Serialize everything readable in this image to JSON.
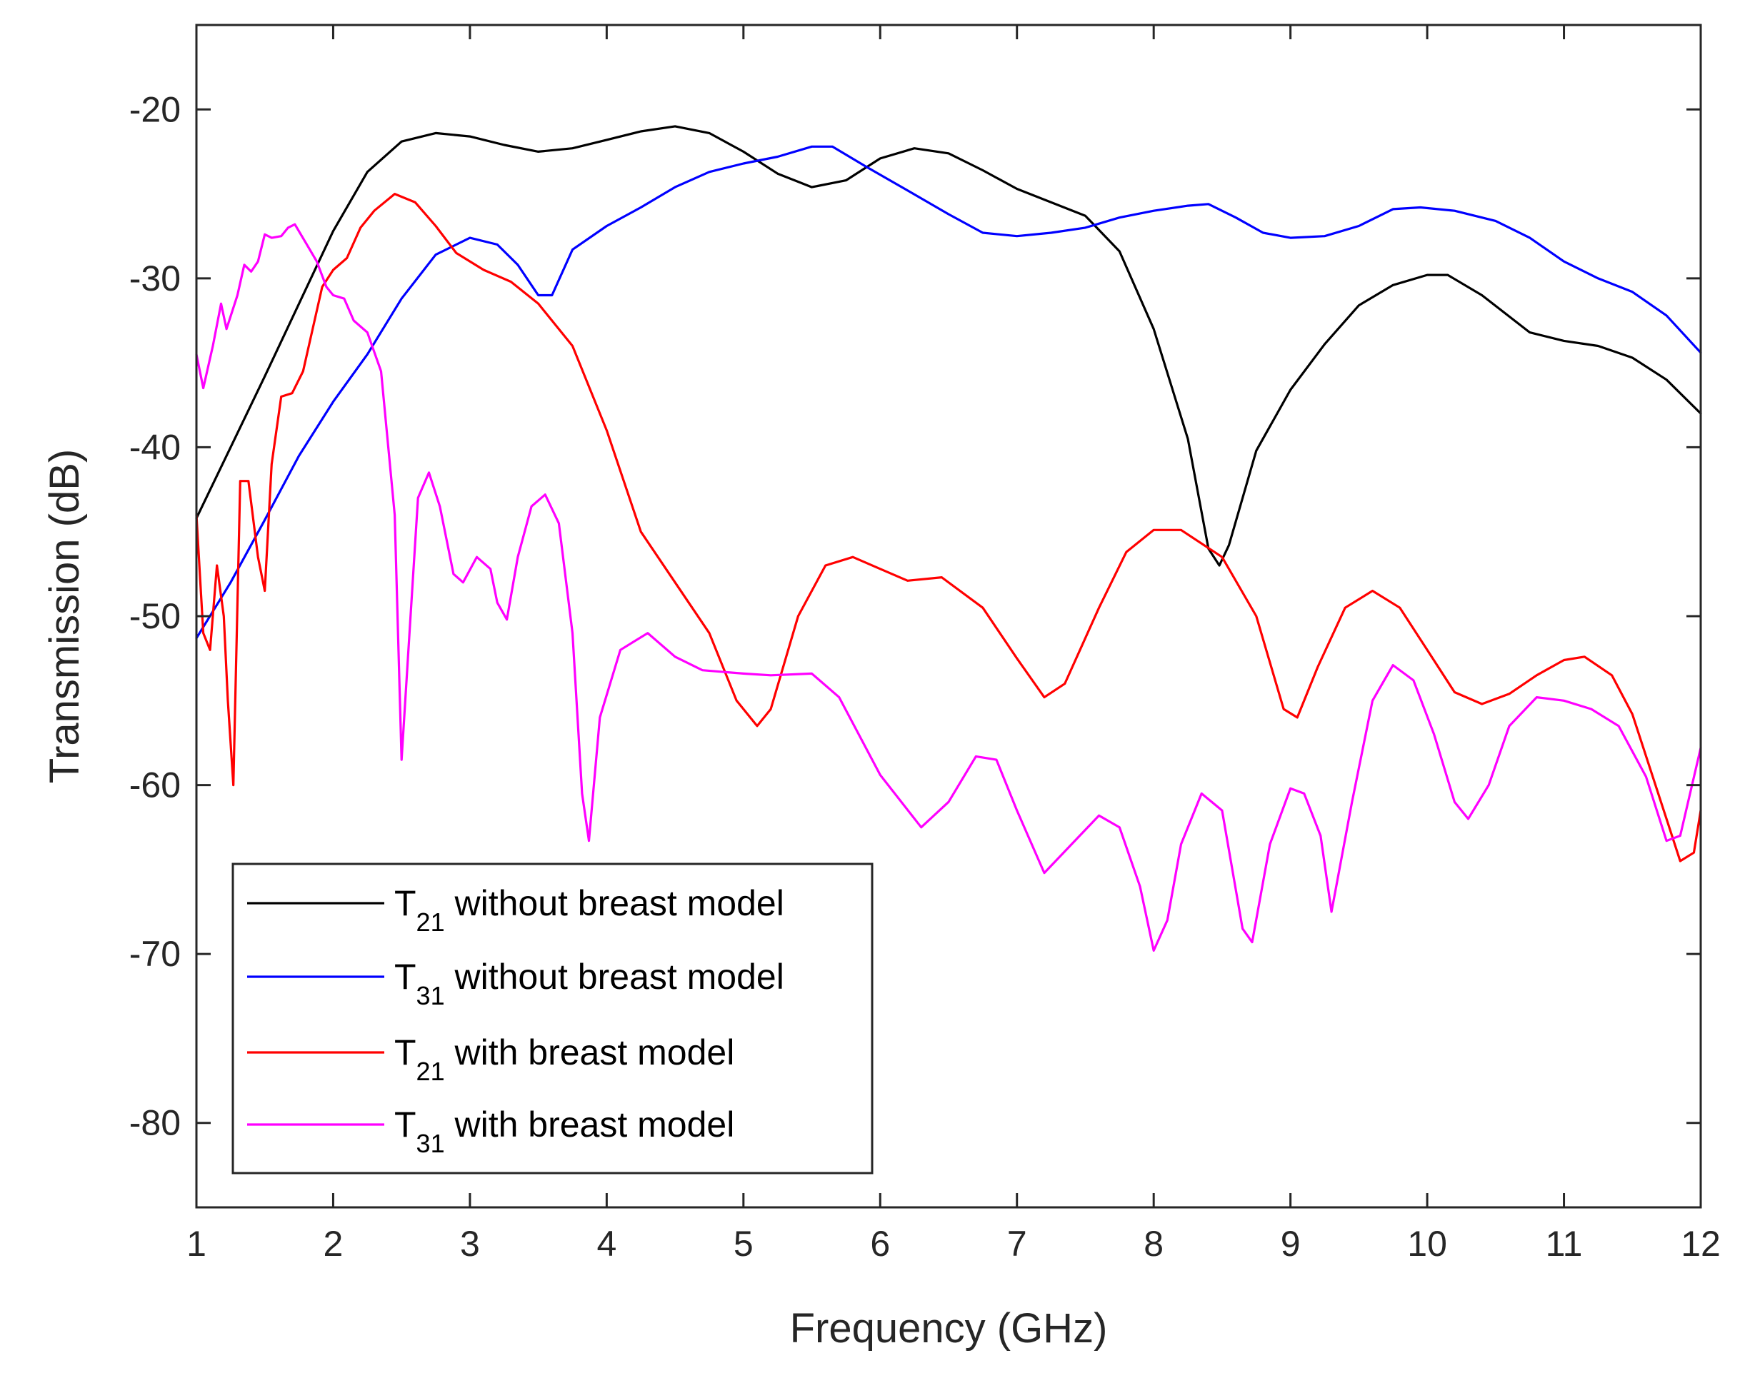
{
  "chart_data": {
    "type": "line",
    "title": "",
    "xlabel": "Frequency (GHz)",
    "ylabel": "Transmission (dB)",
    "xlim": [
      1,
      12
    ],
    "ylim": [
      -85,
      -15
    ],
    "xticks": [
      1,
      2,
      3,
      4,
      5,
      6,
      7,
      8,
      9,
      10,
      11,
      12
    ],
    "yticks": [
      -80,
      -70,
      -60,
      -50,
      -40,
      -30,
      -20
    ],
    "grid": false,
    "legend_position": "bottom-left",
    "series": [
      {
        "name": "T21 without breast model",
        "legend_main": "T",
        "legend_sub": "21",
        "legend_rest": " without breast model",
        "color": "#000000",
        "points": [
          [
            1,
            -44.2
          ],
          [
            1.25,
            -40
          ],
          [
            1.5,
            -35.8
          ],
          [
            1.75,
            -31.5
          ],
          [
            2,
            -27.2
          ],
          [
            2.25,
            -23.7
          ],
          [
            2.5,
            -21.9
          ],
          [
            2.75,
            -21.4
          ],
          [
            3,
            -21.6
          ],
          [
            3.25,
            -22.1
          ],
          [
            3.5,
            -22.5
          ],
          [
            3.75,
            -22.3
          ],
          [
            4,
            -21.8
          ],
          [
            4.25,
            -21.3
          ],
          [
            4.5,
            -21
          ],
          [
            4.75,
            -21.4
          ],
          [
            5,
            -22.5
          ],
          [
            5.25,
            -23.8
          ],
          [
            5.5,
            -24.6
          ],
          [
            5.75,
            -24.2
          ],
          [
            6,
            -22.9
          ],
          [
            6.25,
            -22.3
          ],
          [
            6.5,
            -22.6
          ],
          [
            6.75,
            -23.6
          ],
          [
            7,
            -24.7
          ],
          [
            7.25,
            -25.5
          ],
          [
            7.5,
            -26.3
          ],
          [
            7.75,
            -28.4
          ],
          [
            8,
            -33
          ],
          [
            8.25,
            -39.5
          ],
          [
            8.4,
            -46
          ],
          [
            8.48,
            -47
          ],
          [
            8.55,
            -45.8
          ],
          [
            8.75,
            -40.2
          ],
          [
            9,
            -36.6
          ],
          [
            9.25,
            -33.9
          ],
          [
            9.5,
            -31.6
          ],
          [
            9.75,
            -30.4
          ],
          [
            10,
            -29.8
          ],
          [
            10.15,
            -29.8
          ],
          [
            10.4,
            -31
          ],
          [
            10.75,
            -33.2
          ],
          [
            11,
            -33.7
          ],
          [
            11.25,
            -34
          ],
          [
            11.5,
            -34.7
          ],
          [
            11.75,
            -36
          ],
          [
            12,
            -38
          ]
        ]
      },
      {
        "name": "T31 without breast model",
        "legend_main": "T",
        "legend_sub": "31",
        "legend_rest": " without breast model",
        "color": "#0000ff",
        "points": [
          [
            1,
            -51.3
          ],
          [
            1.25,
            -48
          ],
          [
            1.5,
            -44.3
          ],
          [
            1.75,
            -40.5
          ],
          [
            2,
            -37.3
          ],
          [
            2.25,
            -34.5
          ],
          [
            2.5,
            -31.2
          ],
          [
            2.75,
            -28.6
          ],
          [
            3,
            -27.6
          ],
          [
            3.2,
            -28
          ],
          [
            3.35,
            -29.2
          ],
          [
            3.5,
            -31
          ],
          [
            3.6,
            -31
          ],
          [
            3.75,
            -28.3
          ],
          [
            4,
            -26.9
          ],
          [
            4.25,
            -25.8
          ],
          [
            4.5,
            -24.6
          ],
          [
            4.75,
            -23.7
          ],
          [
            5,
            -23.2
          ],
          [
            5.25,
            -22.8
          ],
          [
            5.5,
            -22.2
          ],
          [
            5.65,
            -22.2
          ],
          [
            5.9,
            -23.4
          ],
          [
            6.2,
            -24.8
          ],
          [
            6.5,
            -26.2
          ],
          [
            6.75,
            -27.3
          ],
          [
            7,
            -27.5
          ],
          [
            7.25,
            -27.3
          ],
          [
            7.5,
            -27
          ],
          [
            7.75,
            -26.4
          ],
          [
            8,
            -26
          ],
          [
            8.25,
            -25.7
          ],
          [
            8.4,
            -25.6
          ],
          [
            8.6,
            -26.4
          ],
          [
            8.8,
            -27.3
          ],
          [
            9,
            -27.6
          ],
          [
            9.25,
            -27.5
          ],
          [
            9.5,
            -26.9
          ],
          [
            9.75,
            -25.9
          ],
          [
            9.95,
            -25.8
          ],
          [
            10.2,
            -26
          ],
          [
            10.5,
            -26.6
          ],
          [
            10.75,
            -27.6
          ],
          [
            11,
            -29
          ],
          [
            11.25,
            -30
          ],
          [
            11.5,
            -30.8
          ],
          [
            11.75,
            -32.2
          ],
          [
            12,
            -34.4
          ]
        ]
      },
      {
        "name": "T21 with breast model",
        "legend_main": "T",
        "legend_sub": "21",
        "legend_rest": " with breast model",
        "color": "#ff0000",
        "points": [
          [
            1,
            -44
          ],
          [
            1.05,
            -51
          ],
          [
            1.1,
            -52
          ],
          [
            1.15,
            -47
          ],
          [
            1.2,
            -50
          ],
          [
            1.23,
            -55
          ],
          [
            1.27,
            -60
          ],
          [
            1.32,
            -42
          ],
          [
            1.38,
            -42
          ],
          [
            1.45,
            -46.5
          ],
          [
            1.5,
            -48.5
          ],
          [
            1.55,
            -41
          ],
          [
            1.62,
            -37
          ],
          [
            1.7,
            -36.8
          ],
          [
            1.78,
            -35.5
          ],
          [
            1.85,
            -33
          ],
          [
            1.92,
            -30.5
          ],
          [
            2,
            -29.5
          ],
          [
            2.1,
            -28.8
          ],
          [
            2.2,
            -27
          ],
          [
            2.3,
            -26
          ],
          [
            2.45,
            -25
          ],
          [
            2.6,
            -25.5
          ],
          [
            2.75,
            -26.9
          ],
          [
            2.9,
            -28.5
          ],
          [
            3.1,
            -29.5
          ],
          [
            3.3,
            -30.2
          ],
          [
            3.5,
            -31.5
          ],
          [
            3.75,
            -34
          ],
          [
            4,
            -39
          ],
          [
            4.25,
            -45
          ],
          [
            4.5,
            -48
          ],
          [
            4.75,
            -51
          ],
          [
            4.95,
            -55
          ],
          [
            5.1,
            -56.5
          ],
          [
            5.2,
            -55.5
          ],
          [
            5.4,
            -50
          ],
          [
            5.6,
            -47
          ],
          [
            5.8,
            -46.5
          ],
          [
            6,
            -47.2
          ],
          [
            6.2,
            -47.9
          ],
          [
            6.45,
            -47.7
          ],
          [
            6.75,
            -49.5
          ],
          [
            7,
            -52.5
          ],
          [
            7.2,
            -54.8
          ],
          [
            7.35,
            -54
          ],
          [
            7.6,
            -49.5
          ],
          [
            7.8,
            -46.2
          ],
          [
            8,
            -44.9
          ],
          [
            8.2,
            -44.9
          ],
          [
            8.5,
            -46.5
          ],
          [
            8.75,
            -50
          ],
          [
            8.95,
            -55.5
          ],
          [
            9.05,
            -56
          ],
          [
            9.2,
            -53
          ],
          [
            9.4,
            -49.5
          ],
          [
            9.6,
            -48.5
          ],
          [
            9.8,
            -49.5
          ],
          [
            10,
            -52
          ],
          [
            10.2,
            -54.5
          ],
          [
            10.4,
            -55.2
          ],
          [
            10.6,
            -54.6
          ],
          [
            10.8,
            -53.5
          ],
          [
            11,
            -52.6
          ],
          [
            11.15,
            -52.4
          ],
          [
            11.35,
            -53.5
          ],
          [
            11.5,
            -55.8
          ],
          [
            11.75,
            -62
          ],
          [
            11.85,
            -64.5
          ],
          [
            11.95,
            -64
          ],
          [
            12,
            -61.5
          ]
        ]
      },
      {
        "name": "T31 with breast model",
        "legend_main": "T",
        "legend_sub": "31",
        "legend_rest": " with breast model",
        "color": "#ff00ff",
        "points": [
          [
            1,
            -34.5
          ],
          [
            1.05,
            -36.5
          ],
          [
            1.12,
            -34
          ],
          [
            1.18,
            -31.5
          ],
          [
            1.22,
            -33
          ],
          [
            1.3,
            -31
          ],
          [
            1.35,
            -29.2
          ],
          [
            1.4,
            -29.6
          ],
          [
            1.45,
            -29
          ],
          [
            1.5,
            -27.4
          ],
          [
            1.55,
            -27.6
          ],
          [
            1.62,
            -27.5
          ],
          [
            1.67,
            -27
          ],
          [
            1.72,
            -26.8
          ],
          [
            1.8,
            -27.9
          ],
          [
            1.88,
            -29
          ],
          [
            1.95,
            -30.5
          ],
          [
            2,
            -31
          ],
          [
            2.08,
            -31.2
          ],
          [
            2.15,
            -32.5
          ],
          [
            2.25,
            -33.2
          ],
          [
            2.35,
            -35.5
          ],
          [
            2.45,
            -44
          ],
          [
            2.5,
            -58.5
          ],
          [
            2.55,
            -52
          ],
          [
            2.62,
            -43
          ],
          [
            2.7,
            -41.5
          ],
          [
            2.78,
            -43.5
          ],
          [
            2.88,
            -47.5
          ],
          [
            2.95,
            -48
          ],
          [
            3.05,
            -46.5
          ],
          [
            3.15,
            -47.2
          ],
          [
            3.2,
            -49.2
          ],
          [
            3.27,
            -50.2
          ],
          [
            3.35,
            -46.5
          ],
          [
            3.45,
            -43.5
          ],
          [
            3.55,
            -42.8
          ],
          [
            3.65,
            -44.5
          ],
          [
            3.75,
            -51
          ],
          [
            3.82,
            -60.5
          ],
          [
            3.87,
            -63.3
          ],
          [
            3.95,
            -56
          ],
          [
            4.1,
            -52
          ],
          [
            4.3,
            -51
          ],
          [
            4.5,
            -52.4
          ],
          [
            4.7,
            -53.2
          ],
          [
            5,
            -53.4
          ],
          [
            5.2,
            -53.5
          ],
          [
            5.5,
            -53.4
          ],
          [
            5.7,
            -54.8
          ],
          [
            6,
            -59.4
          ],
          [
            6.3,
            -62.5
          ],
          [
            6.5,
            -61
          ],
          [
            6.7,
            -58.3
          ],
          [
            6.85,
            -58.5
          ],
          [
            7,
            -61.5
          ],
          [
            7.2,
            -65.2
          ],
          [
            7.4,
            -63.5
          ],
          [
            7.6,
            -61.8
          ],
          [
            7.75,
            -62.5
          ],
          [
            7.9,
            -66
          ],
          [
            8,
            -69.8
          ],
          [
            8.1,
            -68
          ],
          [
            8.2,
            -63.5
          ],
          [
            8.35,
            -60.5
          ],
          [
            8.5,
            -61.5
          ],
          [
            8.65,
            -68.5
          ],
          [
            8.72,
            -69.3
          ],
          [
            8.85,
            -63.5
          ],
          [
            9,
            -60.2
          ],
          [
            9.1,
            -60.5
          ],
          [
            9.22,
            -63
          ],
          [
            9.3,
            -67.5
          ],
          [
            9.45,
            -61
          ],
          [
            9.6,
            -55
          ],
          [
            9.75,
            -52.9
          ],
          [
            9.9,
            -53.8
          ],
          [
            10.05,
            -57
          ],
          [
            10.2,
            -61
          ],
          [
            10.3,
            -62
          ],
          [
            10.45,
            -60
          ],
          [
            10.6,
            -56.5
          ],
          [
            10.8,
            -54.8
          ],
          [
            11,
            -55
          ],
          [
            11.2,
            -55.5
          ],
          [
            11.4,
            -56.5
          ],
          [
            11.6,
            -59.5
          ],
          [
            11.75,
            -63.3
          ],
          [
            11.85,
            -63
          ],
          [
            12,
            -57.8
          ]
        ]
      }
    ]
  }
}
